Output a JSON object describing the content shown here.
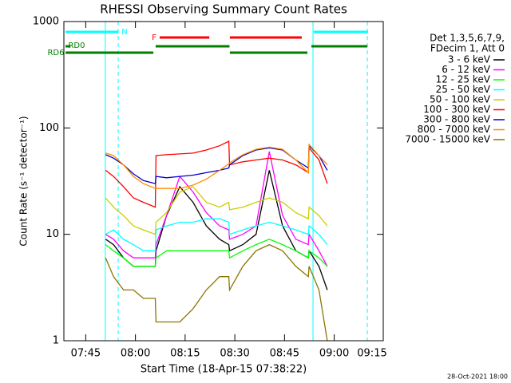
{
  "chart_data": {
    "type": "line",
    "title": "RHESSI Observing Summary Count Rates",
    "xlabel": "Start Time (18-Apr-15 07:38:22)",
    "ylabel": "Count Rate (s⁻¹ detector⁻¹)",
    "footer": "28-Oct-2021 18:00",
    "legend_header": [
      "Det 1,3,5,6,7,9,",
      "FDecim 1, Att 0"
    ],
    "log_y": true,
    "xlim": [
      0,
      96.4
    ],
    "ylim": [
      1,
      1000
    ],
    "yticks": [
      1,
      10,
      100,
      1000
    ],
    "xticks": [
      {
        "value": 6.6,
        "label": "07:45"
      },
      {
        "value": 21.6,
        "label": "08:00"
      },
      {
        "value": 36.6,
        "label": "08:15"
      },
      {
        "value": 51.6,
        "label": "08:30"
      },
      {
        "value": 66.6,
        "label": "08:45"
      },
      {
        "value": 81.6,
        "label": "09:00"
      },
      {
        "value": 96.6,
        "label": "09:15"
      }
    ],
    "x": [
      12.6,
      15,
      18,
      21,
      24,
      27.6,
      27.8,
      31,
      35,
      39,
      43,
      47,
      49.8,
      50,
      54,
      58,
      62,
      66,
      70,
      73.8,
      74,
      77,
      79.5
    ],
    "series": [
      {
        "name": "3 - 6 keV",
        "color": "#000000",
        "values": [
          9,
          8,
          6,
          5,
          5,
          5,
          7,
          15,
          28,
          20,
          12,
          9,
          8,
          7,
          8,
          10,
          40,
          12,
          7,
          6,
          7,
          5,
          3
        ]
      },
      {
        "name": "6 - 12 keV",
        "color": "#ff00ff",
        "values": [
          10,
          9,
          7,
          6,
          6,
          6,
          8,
          15,
          35,
          25,
          16,
          12,
          11,
          9,
          10,
          12,
          60,
          15,
          9,
          8,
          10,
          7,
          5
        ]
      },
      {
        "name": "12 - 25 keV",
        "color": "#00ff00",
        "values": [
          8,
          7,
          6,
          5,
          5,
          5,
          6,
          7,
          7,
          7,
          7,
          7,
          7,
          6,
          7,
          8,
          9,
          8,
          7,
          6,
          7,
          6,
          5
        ]
      },
      {
        "name": "25 - 50 keV",
        "color": "#00ffff",
        "values": [
          10,
          11,
          9,
          8,
          7,
          7,
          11,
          12,
          13,
          13,
          14,
          14,
          13,
          10,
          11,
          12,
          13,
          12,
          11,
          10,
          12,
          10,
          8
        ]
      },
      {
        "name": "50 - 100 keV",
        "color": "#cccc00",
        "values": [
          22,
          18,
          15,
          12,
          11,
          10,
          13,
          16,
          25,
          28,
          20,
          18,
          20,
          17,
          18,
          20,
          22,
          20,
          16,
          14,
          18,
          15,
          12
        ]
      },
      {
        "name": "100 - 300 keV",
        "color": "#ff0000",
        "values": [
          40,
          35,
          28,
          22,
          20,
          18,
          55,
          56,
          57,
          58,
          62,
          68,
          75,
          45,
          48,
          50,
          52,
          50,
          45,
          38,
          65,
          50,
          30
        ]
      },
      {
        "name": "300 - 800 keV",
        "color": "#0000cc",
        "values": [
          56,
          52,
          45,
          37,
          32,
          30,
          35,
          34,
          35,
          36,
          38,
          40,
          42,
          45,
          55,
          62,
          65,
          62,
          50,
          42,
          68,
          55,
          40
        ]
      },
      {
        "name": "800 - 7000 keV",
        "color": "#ff8c00",
        "values": [
          58,
          55,
          45,
          35,
          30,
          27,
          27,
          27,
          27,
          29,
          33,
          40,
          46,
          47,
          56,
          63,
          66,
          63,
          50,
          38,
          70,
          55,
          45
        ]
      },
      {
        "name": "7000 - 15000 keV",
        "color": "#8b7500",
        "values": [
          6,
          4,
          3,
          3,
          2.5,
          2.5,
          1.5,
          1.5,
          1.5,
          2,
          3,
          4,
          4,
          3,
          5,
          7,
          8,
          7,
          5,
          4,
          5,
          3,
          1
        ]
      }
    ],
    "flags": [
      {
        "name": "N",
        "color": "#00ffff",
        "intervals": [
          [
            0.5,
            16.4
          ],
          [
            75.4,
            91.8
          ]
        ]
      },
      {
        "name": "F",
        "color": "#ff0000",
        "intervals": [
          [
            28.9,
            43.9
          ],
          [
            50.1,
            71.8
          ]
        ]
      },
      {
        "name": "RD0",
        "color": "#008000",
        "intervals": [
          [
            0.5,
            2
          ],
          [
            27.7,
            50
          ],
          [
            74.7,
            91.6
          ]
        ]
      },
      {
        "name": "RD6",
        "color": "#008000",
        "intervals": [
          [
            0.5,
            27
          ],
          [
            50.1,
            73.5
          ]
        ]
      }
    ],
    "vlines": [
      {
        "x": 12.5,
        "color": "#00ffff",
        "dashed": false
      },
      {
        "x": 75.2,
        "color": "#00ffff",
        "dashed": false
      },
      {
        "x": 16.4,
        "color": "#00ffff",
        "dashed": true
      },
      {
        "x": 91.6,
        "color": "#00ffff",
        "dashed": true
      }
    ]
  }
}
